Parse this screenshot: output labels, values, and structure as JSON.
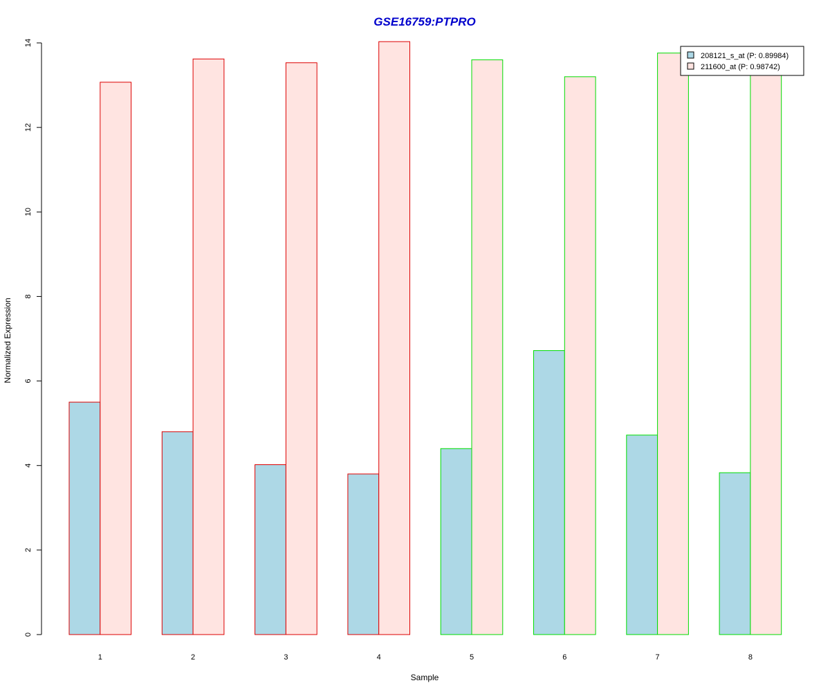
{
  "chart_data": {
    "type": "bar",
    "title": "GSE16759:PTPRO",
    "xlabel": "Sample",
    "ylabel": "Normalized Expression",
    "categories": [
      "1",
      "2",
      "3",
      "4",
      "5",
      "6",
      "7",
      "8"
    ],
    "ylim": [
      0,
      14
    ],
    "yticks": [
      0,
      2,
      4,
      6,
      8,
      10,
      12,
      14
    ],
    "grid": false,
    "legend_position": "top-right",
    "series": [
      {
        "name": "208121_s_at (P: 0.89984)",
        "fill": "#add8e6",
        "values": [
          5.5,
          4.8,
          4.02,
          3.8,
          4.4,
          6.72,
          4.72,
          3.83
        ]
      },
      {
        "name": "211600_at (P: 0.98742)",
        "fill": "#ffe4e1",
        "values": [
          13.07,
          13.62,
          13.53,
          14.03,
          13.6,
          13.2,
          13.76,
          13.3
        ]
      }
    ],
    "group_outline_colors": [
      "#dd0000",
      "#dd0000",
      "#dd0000",
      "#dd0000",
      "#00dd00",
      "#00dd00",
      "#00dd00",
      "#00dd00"
    ]
  }
}
